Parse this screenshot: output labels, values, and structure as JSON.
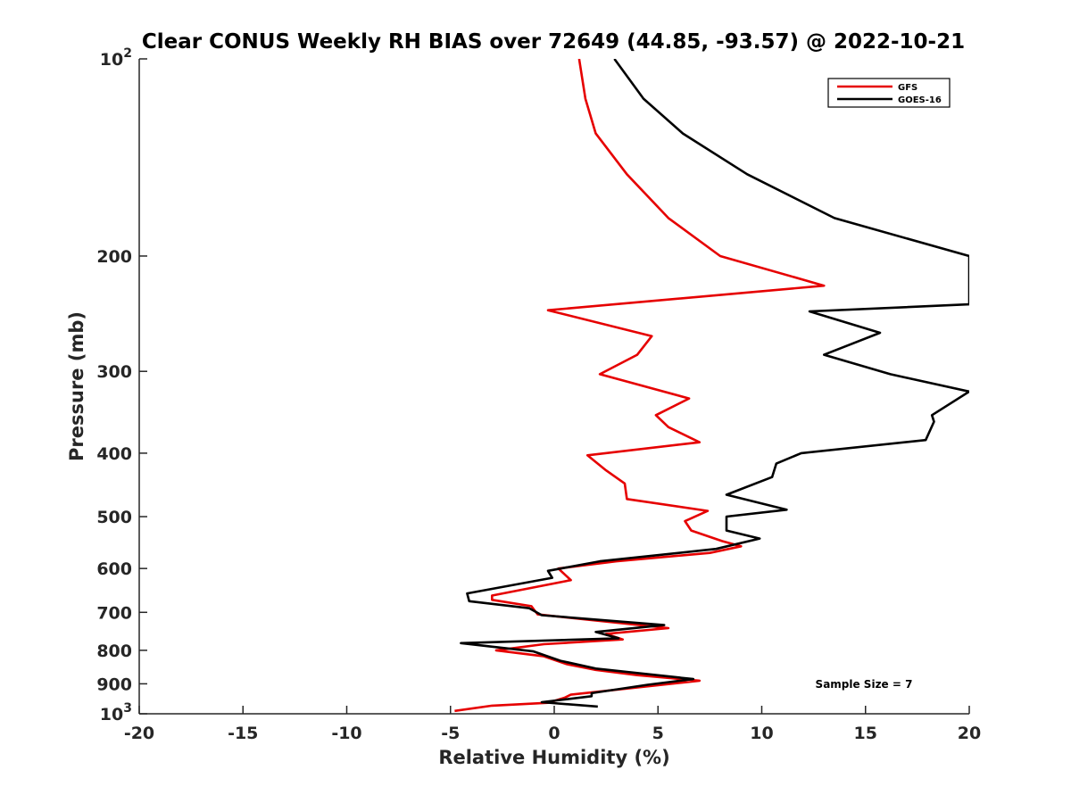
{
  "chart_data": {
    "type": "line",
    "title": "Clear CONUS Weekly RH BIAS over 72649 (44.85, -93.57) @ 2022-10-21",
    "xlabel": "Relative Humidity (%)",
    "ylabel": "Pressure (mb)",
    "xlim": [
      -20,
      20
    ],
    "ylim": [
      100,
      1000
    ],
    "y_scale": "log",
    "y_reversed": true,
    "grid": false,
    "legend_placement": "top-right",
    "x_ticks": [
      {
        "value": -20,
        "label": "-20"
      },
      {
        "value": -15,
        "label": "-15"
      },
      {
        "value": -10,
        "label": "-10"
      },
      {
        "value": -5,
        "label": "-5"
      },
      {
        "value": 0,
        "label": "0"
      },
      {
        "value": 5,
        "label": "5"
      },
      {
        "value": 10,
        "label": "10"
      },
      {
        "value": 15,
        "label": "15"
      },
      {
        "value": 20,
        "label": "20"
      }
    ],
    "y_ticks": [
      {
        "value": 100,
        "base": "10",
        "exp": "2"
      },
      {
        "value": 200,
        "base": "200",
        "exp": ""
      },
      {
        "value": 300,
        "base": "300",
        "exp": ""
      },
      {
        "value": 400,
        "base": "400",
        "exp": ""
      },
      {
        "value": 500,
        "base": "500",
        "exp": ""
      },
      {
        "value": 600,
        "base": "600",
        "exp": ""
      },
      {
        "value": 700,
        "base": "700",
        "exp": ""
      },
      {
        "value": 800,
        "base": "800",
        "exp": ""
      },
      {
        "value": 900,
        "base": "900",
        "exp": ""
      },
      {
        "value": 1000,
        "base": "10",
        "exp": "3"
      }
    ],
    "series": [
      {
        "name": "GFS",
        "color": "#e60000",
        "points": [
          [
            1.2,
            100
          ],
          [
            1.5,
            115
          ],
          [
            2.0,
            130
          ],
          [
            3.5,
            150
          ],
          [
            5.5,
            175
          ],
          [
            8.0,
            200
          ],
          [
            13.0,
            222
          ],
          [
            -0.3,
            242
          ],
          [
            4.7,
            265
          ],
          [
            4.0,
            283
          ],
          [
            2.2,
            303
          ],
          [
            6.5,
            330
          ],
          [
            4.9,
            350
          ],
          [
            5.5,
            365
          ],
          [
            7.0,
            385
          ],
          [
            1.6,
            403
          ],
          [
            2.5,
            425
          ],
          [
            3.4,
            445
          ],
          [
            3.5,
            470
          ],
          [
            7.4,
            490
          ],
          [
            6.3,
            508
          ],
          [
            6.6,
            525
          ],
          [
            8.1,
            545
          ],
          [
            9.0,
            555
          ],
          [
            7.5,
            568
          ],
          [
            3.0,
            585
          ],
          [
            0.2,
            600
          ],
          [
            0.8,
            625
          ],
          [
            -3.0,
            660
          ],
          [
            -3.0,
            670
          ],
          [
            -1.1,
            685
          ],
          [
            -0.8,
            705
          ],
          [
            5.5,
            740
          ],
          [
            2.5,
            755
          ],
          [
            3.3,
            770
          ],
          [
            -0.5,
            783
          ],
          [
            -2.8,
            800
          ],
          [
            -0.5,
            817
          ],
          [
            0.6,
            840
          ],
          [
            2.0,
            857
          ],
          [
            4.0,
            873
          ],
          [
            7.0,
            890
          ],
          [
            0.8,
            935
          ],
          [
            0.5,
            945
          ],
          [
            -0.3,
            962
          ],
          [
            -3.0,
            972
          ],
          [
            -4.8,
            990
          ]
        ]
      },
      {
        "name": "GOES-16",
        "color": "#000000",
        "points": [
          [
            2.9,
            100
          ],
          [
            4.3,
            115
          ],
          [
            6.2,
            130
          ],
          [
            9.3,
            150
          ],
          [
            13.5,
            175
          ],
          [
            20.0,
            200
          ],
          [
            20.0,
            237
          ],
          [
            12.3,
            243
          ],
          [
            15.7,
            262
          ],
          [
            13.0,
            283
          ],
          [
            16.2,
            303
          ],
          [
            20.0,
            322
          ],
          [
            18.2,
            350
          ],
          [
            18.3,
            358
          ],
          [
            17.9,
            382
          ],
          [
            11.9,
            400
          ],
          [
            10.7,
            415
          ],
          [
            10.5,
            435
          ],
          [
            8.3,
            463
          ],
          [
            11.2,
            488
          ],
          [
            8.3,
            500
          ],
          [
            8.3,
            525
          ],
          [
            9.9,
            540
          ],
          [
            7.8,
            560
          ],
          [
            2.2,
            585
          ],
          [
            -0.3,
            605
          ],
          [
            -0.1,
            620
          ],
          [
            -4.2,
            655
          ],
          [
            -4.1,
            673
          ],
          [
            -1.2,
            690
          ],
          [
            -0.6,
            707
          ],
          [
            5.3,
            732
          ],
          [
            2.0,
            750
          ],
          [
            3.1,
            767
          ],
          [
            -4.5,
            780
          ],
          [
            -1.0,
            803
          ],
          [
            0.3,
            830
          ],
          [
            2.0,
            853
          ],
          [
            4.5,
            870
          ],
          [
            6.7,
            885
          ],
          [
            4.5,
            903
          ],
          [
            1.8,
            930
          ],
          [
            1.8,
            940
          ],
          [
            -0.6,
            960
          ],
          [
            2.1,
            975
          ]
        ]
      }
    ],
    "annotations": [
      {
        "text": "Sample Size = 7"
      }
    ]
  }
}
